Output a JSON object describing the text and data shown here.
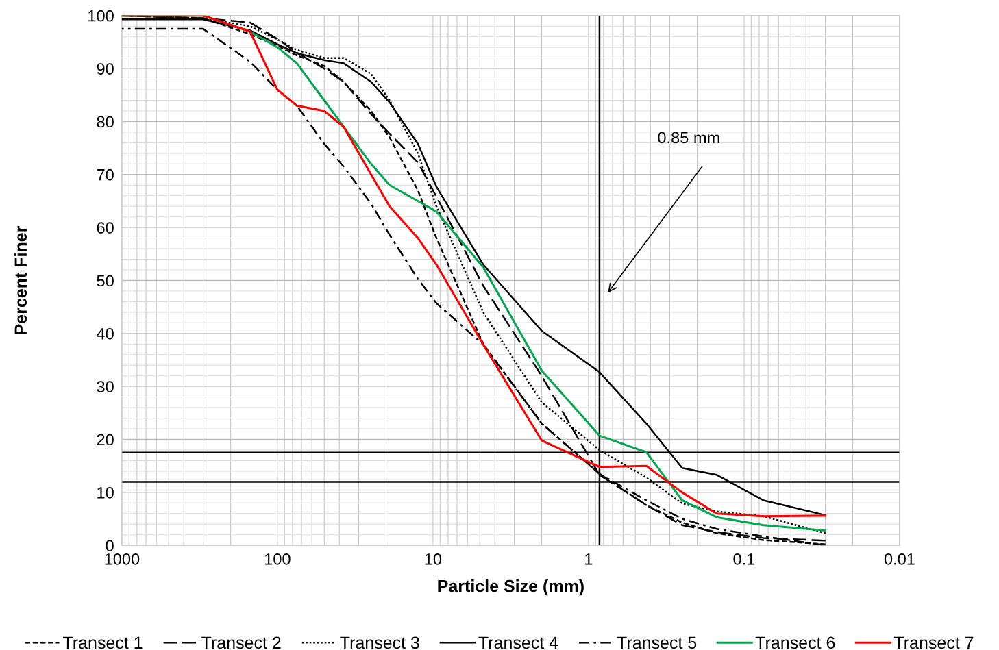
{
  "chart_data": {
    "type": "line",
    "xlabel": "Particle Size (mm)",
    "ylabel": "Percent Finer",
    "x": [
      1000,
      300,
      150,
      100,
      75,
      50,
      37.5,
      25,
      19,
      12.5,
      9.5,
      4.75,
      2,
      0.85,
      0.425,
      0.25,
      0.15,
      0.075,
      0.03
    ],
    "series": [
      {
        "name": "Transect 1",
        "color": "#000000",
        "line_style": "dashed",
        "values": [
          100,
          99.5,
          96.5,
          94.3,
          92.5,
          90.5,
          87.5,
          82,
          77,
          67,
          58,
          38,
          23,
          13.5,
          7.6,
          4.3,
          2.3,
          1,
          0.2
        ]
      },
      {
        "name": "Transect 2",
        "color": "#000000",
        "line_style": "longdash",
        "values": [
          100,
          99.5,
          98.7,
          95.6,
          93,
          90,
          87.5,
          81.4,
          77.7,
          72.3,
          65.8,
          49,
          32,
          13.3,
          7.6,
          3.8,
          2.5,
          1.4,
          0.9
        ]
      },
      {
        "name": "Transect 3",
        "color": "#000000",
        "line_style": "dotted",
        "values": [
          100,
          99.5,
          98,
          95.5,
          93.5,
          92,
          92,
          89,
          84,
          74,
          64,
          44,
          27,
          18,
          12.8,
          7.9,
          6.4,
          5.5,
          2.3
        ]
      },
      {
        "name": "Transect 4",
        "color": "#000000",
        "line_style": "solid",
        "values": [
          99.3,
          99.3,
          97.2,
          94.6,
          92.9,
          91.6,
          91,
          87.5,
          83.6,
          75.8,
          67.7,
          53,
          40.5,
          32.7,
          23,
          14.6,
          13.3,
          8.5,
          5.7
        ]
      },
      {
        "name": "Transect 5",
        "color": "#000000",
        "line_style": "dashdot",
        "values": [
          97.5,
          97.5,
          91.3,
          86,
          83,
          75.8,
          71.5,
          64.5,
          58.6,
          50.3,
          45.7,
          37.9,
          23,
          13.5,
          8.5,
          5,
          3.1,
          1.7,
          0
        ]
      },
      {
        "name": "Transect 6",
        "color": "#00a650",
        "line_style": "solid",
        "values": [
          100,
          100,
          97,
          94,
          91,
          84,
          79,
          72,
          68,
          65,
          63,
          52.5,
          33,
          20.7,
          17.6,
          8.5,
          5.3,
          3.8,
          2.8
        ]
      },
      {
        "name": "Transect 7",
        "color": "#ff0000",
        "line_style": "solid",
        "values": [
          100,
          100,
          97,
          86,
          83,
          82,
          79,
          70,
          64,
          58,
          53,
          37.9,
          19.8,
          14.8,
          15,
          10,
          6,
          5.5,
          5.6
        ]
      }
    ],
    "log": "x",
    "xlim": [
      1000,
      0.01
    ],
    "xticks": [
      1000,
      100,
      10,
      1,
      0.1,
      0.01
    ],
    "ylim": [
      0,
      100
    ],
    "yticks": [
      0,
      10,
      20,
      30,
      40,
      50,
      60,
      70,
      80,
      90,
      100
    ],
    "grid": true,
    "legend": "bottom",
    "marker": "none",
    "ref_lines": [
      {
        "axis": "x",
        "value": 0.85,
        "color": "#000000",
        "line_style": "solid"
      },
      {
        "axis": "y",
        "value": 17.5,
        "color": "#000000",
        "line_style": "solid"
      },
      {
        "axis": "y",
        "value": 12,
        "color": "#000000",
        "line_style": "solid"
      }
    ],
    "annotations": [
      "0.85 mm"
    ]
  }
}
